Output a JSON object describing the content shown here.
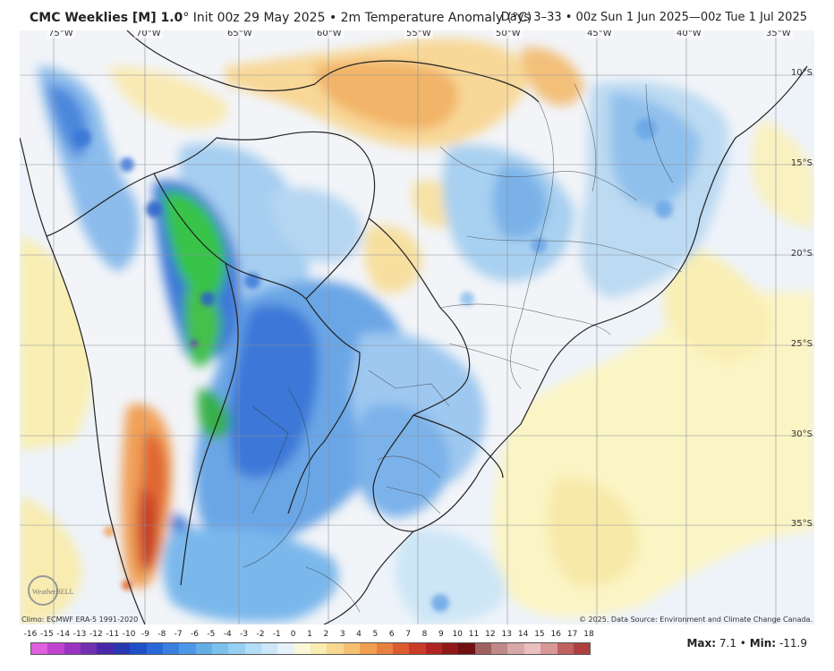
{
  "header": {
    "title_bold": "CMC Weeklies [M] 1.0",
    "title_rest": "° Init 00z 29 May 2025 • 2m Temperature Anomaly (°C)",
    "valid": "Days 3–33 • 00z Sun 1 Jun 2025—00z Tue 1 Jul 2025"
  },
  "map": {
    "lon_labels": [
      "75°W",
      "70°W",
      "65°W",
      "60°W",
      "55°W",
      "50°W",
      "45°W",
      "40°W",
      "35°W"
    ],
    "lat_labels": [
      "10°S",
      "15°S",
      "20°S",
      "25°S",
      "30°S",
      "35°S"
    ],
    "colors": {
      "ocean": "#eef3fa",
      "land": "#f2f4f8",
      "border": "#222222",
      "grid": "#555555"
    }
  },
  "footer": {
    "climo": "Climo: ECMWF ERA-5 1991-2020",
    "credit": "© 2025. Data Source: Environment and Climate Change Canada.",
    "max_label": "Max:",
    "max_value": "7.1",
    "min_label": "Min:",
    "min_value": "-11.9",
    "separator": "•"
  },
  "colorbar": {
    "labels": [
      "-16",
      "-15",
      "-14",
      "-13",
      "-12",
      "-11",
      "-10",
      "-9",
      "-8",
      "-7",
      "-6",
      "-5",
      "-4",
      "-3",
      "-2",
      "-1",
      "0",
      "1",
      "2",
      "3",
      "4",
      "5",
      "6",
      "7",
      "8",
      "9",
      "10",
      "11",
      "12",
      "13",
      "14",
      "15",
      "16",
      "17",
      "18"
    ],
    "colors": [
      "#e060e0",
      "#c044d0",
      "#9a34c0",
      "#7030b0",
      "#4828a8",
      "#2838b0",
      "#2050c8",
      "#2a68d8",
      "#3a80e0",
      "#4c98e8",
      "#64aee8",
      "#7cc0ee",
      "#96d0f2",
      "#b2def6",
      "#cce8f8",
      "#e6f2fa",
      "#fbf8d8",
      "#f8ecb0",
      "#f6d890",
      "#f4c070",
      "#f0a050",
      "#e88040",
      "#dc5c30",
      "#c83c28",
      "#b02424",
      "#901818",
      "#701010",
      "#a06060",
      "#c08888",
      "#d8a8a8",
      "#e8c0c0",
      "#d89898",
      "#c06060",
      "#b04040"
    ]
  },
  "logo": {
    "text": "WeatherBELL"
  }
}
